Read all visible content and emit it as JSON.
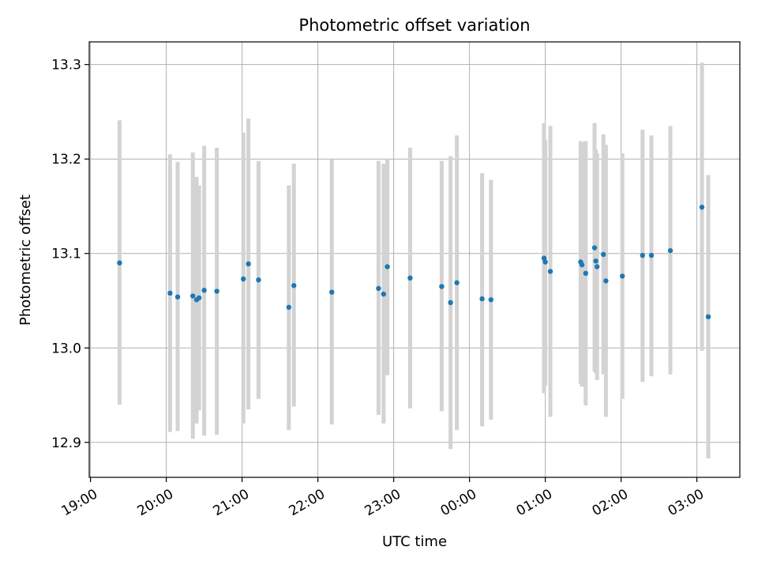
{
  "chart_data": {
    "type": "scatter",
    "title": "Photometric offset variation",
    "xlabel": "UTC time",
    "ylabel": "Photometric offset",
    "xlim": [
      "18:59",
      "03:34"
    ],
    "ylim": [
      12.863,
      13.324
    ],
    "x_ticks": [
      "19:00",
      "20:00",
      "21:00",
      "22:00",
      "23:00",
      "00:00",
      "01:00",
      "02:00",
      "03:00"
    ],
    "y_ticks": [
      12.9,
      13.0,
      13.1,
      13.2,
      13.3
    ],
    "grid": true,
    "point_color": "#1f77b4",
    "errorbar_color": "#d3d3d3",
    "series": [
      {
        "points": [
          {
            "x": "19:23",
            "y": 13.09,
            "y_low": 12.94,
            "y_high": 13.241
          },
          {
            "x": "20:03",
            "y": 13.058,
            "y_low": 12.911,
            "y_high": 13.205
          },
          {
            "x": "20:09",
            "y": 13.054,
            "y_low": 12.912,
            "y_high": 13.197
          },
          {
            "x": "20:21",
            "y": 13.055,
            "y_low": 12.904,
            "y_high": 13.207
          },
          {
            "x": "20:24",
            "y": 13.051,
            "y_low": 12.92,
            "y_high": 13.181
          },
          {
            "x": "20:26",
            "y": 13.053,
            "y_low": 12.934,
            "y_high": 13.172
          },
          {
            "x": "20:30",
            "y": 13.061,
            "y_low": 12.907,
            "y_high": 13.214
          },
          {
            "x": "20:40",
            "y": 13.06,
            "y_low": 12.908,
            "y_high": 13.212
          },
          {
            "x": "21:01",
            "y": 13.073,
            "y_low": 12.92,
            "y_high": 13.228
          },
          {
            "x": "21:05",
            "y": 13.089,
            "y_low": 12.935,
            "y_high": 13.243
          },
          {
            "x": "21:13",
            "y": 13.072,
            "y_low": 12.946,
            "y_high": 13.198
          },
          {
            "x": "21:37",
            "y": 13.043,
            "y_low": 12.913,
            "y_high": 13.172
          },
          {
            "x": "21:41",
            "y": 13.066,
            "y_low": 12.938,
            "y_high": 13.195
          },
          {
            "x": "22:11",
            "y": 13.059,
            "y_low": 12.919,
            "y_high": 13.2
          },
          {
            "x": "22:48",
            "y": 13.063,
            "y_low": 12.929,
            "y_high": 13.198
          },
          {
            "x": "22:52",
            "y": 13.057,
            "y_low": 12.92,
            "y_high": 13.195
          },
          {
            "x": "22:55",
            "y": 13.086,
            "y_low": 12.971,
            "y_high": 13.2
          },
          {
            "x": "23:13",
            "y": 13.074,
            "y_low": 12.936,
            "y_high": 13.212
          },
          {
            "x": "23:38",
            "y": 13.065,
            "y_low": 12.933,
            "y_high": 13.198
          },
          {
            "x": "23:45",
            "y": 13.048,
            "y_low": 12.893,
            "y_high": 13.203
          },
          {
            "x": "23:50",
            "y": 13.069,
            "y_low": 12.913,
            "y_high": 13.225
          },
          {
            "x": "00:10",
            "y": 13.052,
            "y_low": 12.917,
            "y_high": 13.185
          },
          {
            "x": "00:17",
            "y": 13.051,
            "y_low": 12.924,
            "y_high": 13.178
          },
          {
            "x": "00:59",
            "y": 13.095,
            "y_low": 12.952,
            "y_high": 13.238
          },
          {
            "x": "01:00",
            "y": 13.091,
            "y_low": 12.96,
            "y_high": 13.22
          },
          {
            "x": "01:04",
            "y": 13.081,
            "y_low": 12.927,
            "y_high": 13.235
          },
          {
            "x": "01:28",
            "y": 13.091,
            "y_low": 12.962,
            "y_high": 13.219
          },
          {
            "x": "01:29",
            "y": 13.088,
            "y_low": 12.959,
            "y_high": 13.218
          },
          {
            "x": "01:32",
            "y": 13.079,
            "y_low": 12.939,
            "y_high": 13.219
          },
          {
            "x": "01:39",
            "y": 13.106,
            "y_low": 12.975,
            "y_high": 13.238
          },
          {
            "x": "01:40",
            "y": 13.092,
            "y_low": 12.973,
            "y_high": 13.21
          },
          {
            "x": "01:41",
            "y": 13.086,
            "y_low": 12.966,
            "y_high": 13.206
          },
          {
            "x": "01:46",
            "y": 13.099,
            "y_low": 12.972,
            "y_high": 13.226
          },
          {
            "x": "01:48",
            "y": 13.071,
            "y_low": 12.927,
            "y_high": 13.215
          },
          {
            "x": "02:01",
            "y": 13.076,
            "y_low": 12.946,
            "y_high": 13.206
          },
          {
            "x": "02:17",
            "y": 13.098,
            "y_low": 12.964,
            "y_high": 13.231
          },
          {
            "x": "02:24",
            "y": 13.098,
            "y_low": 12.97,
            "y_high": 13.225
          },
          {
            "x": "02:39",
            "y": 13.103,
            "y_low": 12.972,
            "y_high": 13.235
          },
          {
            "x": "03:04",
            "y": 13.149,
            "y_low": 12.997,
            "y_high": 13.302
          },
          {
            "x": "03:09",
            "y": 13.033,
            "y_low": 12.883,
            "y_high": 13.183
          }
        ]
      }
    ]
  }
}
